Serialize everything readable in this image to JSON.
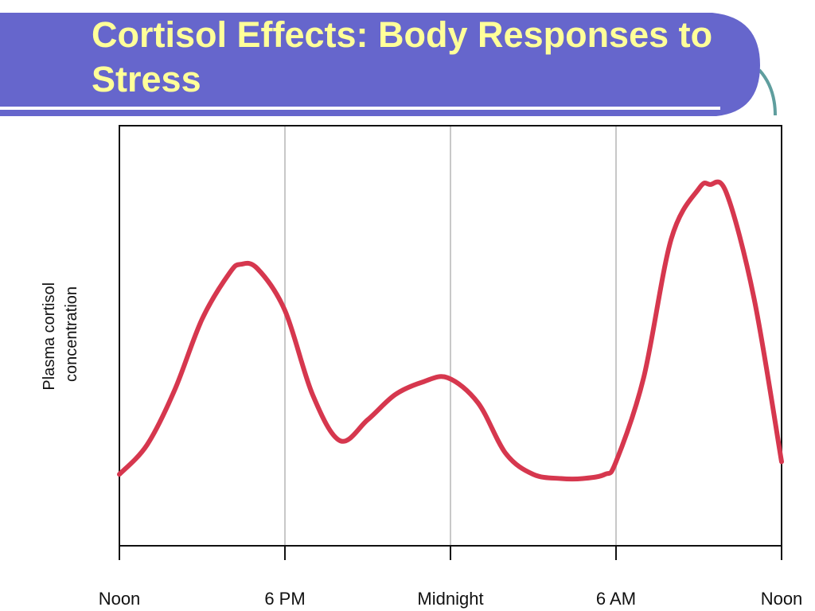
{
  "slide": {
    "title": "Cortisol Effects: Body Responses to Stress",
    "colors": {
      "banner": "#6666cc",
      "title_text": "#ffff99",
      "accent_arc": "#5f9e9e",
      "curve": "#d6374e",
      "gridline": "#c8c8c8",
      "axis": "#111111"
    }
  },
  "chart_data": {
    "type": "line",
    "title": "",
    "xlabel": "",
    "ylabel": "Plasma cortisol concentration",
    "ylabel_lines": [
      "Plasma cortisol",
      "concentration"
    ],
    "x_ticks": [
      "Noon",
      "6 PM",
      "Midnight",
      "6 AM",
      "Noon"
    ],
    "x_range_hours": [
      0,
      24
    ],
    "y_units": "relative (no scale shown)",
    "ylim": [
      0,
      10
    ],
    "grid": "vertical lines at tick marks",
    "series": [
      {
        "x": [
          0,
          1,
          2,
          3,
          4,
          4.4,
          5,
          6,
          7,
          8,
          9,
          10,
          11,
          11.9,
          13,
          14,
          15,
          16,
          16.8,
          17.6,
          18,
          19,
          20,
          21,
          21.4,
          22,
          23,
          24
        ],
        "y": [
          1.7,
          2.4,
          3.7,
          5.4,
          6.5,
          6.7,
          6.6,
          5.6,
          3.6,
          2.5,
          3.0,
          3.6,
          3.9,
          4.0,
          3.4,
          2.2,
          1.7,
          1.6,
          1.6,
          1.7,
          2.0,
          4.0,
          7.3,
          8.5,
          8.6,
          8.4,
          5.9,
          2.0
        ]
      }
    ]
  }
}
